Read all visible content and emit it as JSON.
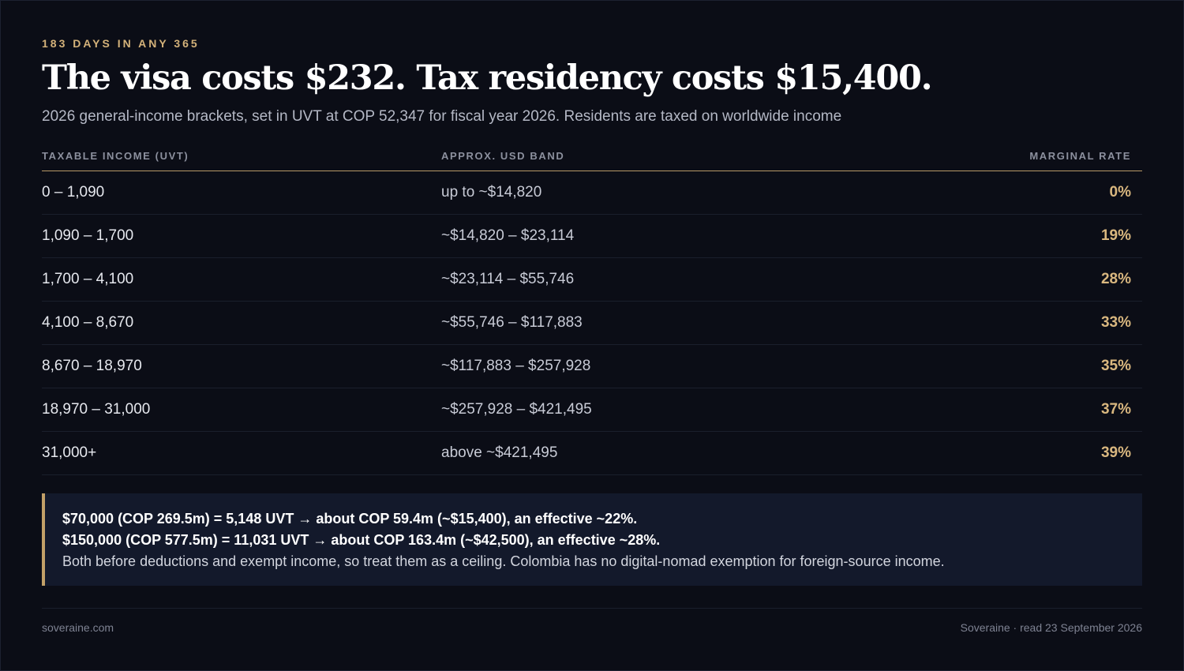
{
  "eyebrow": "183 DAYS IN ANY 365",
  "title": "The visa costs $232. Tax residency costs $15,400.",
  "subtitle": "2026 general-income brackets, set in UVT at COP 52,347 for fiscal year 2026. Residents are taxed on worldwide income",
  "table": {
    "headers": [
      "TAXABLE INCOME (UVT)",
      "APPROX. USD BAND",
      "MARGINAL RATE"
    ],
    "rows": [
      [
        "0 – 1,090",
        "up to ~$14,820",
        "0%"
      ],
      [
        "1,090 – 1,700",
        "~$14,820 – $23,114",
        "19%"
      ],
      [
        "1,700 – 4,100",
        "~$23,114 – $55,746",
        "28%"
      ],
      [
        "4,100 – 8,670",
        "~$55,746 – $117,883",
        "33%"
      ],
      [
        "8,670 – 18,970",
        "~$117,883 – $257,928",
        "35%"
      ],
      [
        "18,970 – 31,000",
        "~$257,928 – $421,495",
        "37%"
      ],
      [
        "31,000+",
        "above ~$421,495",
        "39%"
      ]
    ]
  },
  "callout": {
    "line1": "$70,000 (COP 269.5m) = 5,148 UVT → about COP 59.4m (~$15,400), an effective ~22%.",
    "line2": "$150,000 (COP 577.5m) = 11,031 UVT → about COP 163.4m (~$42,500), an effective ~28%.",
    "line3": "Both before deductions and exempt income, so treat them as a ceiling. Colombia has no digital-nomad exemption for foreign-source income."
  },
  "footer": {
    "left": "soveraine.com",
    "right": "Soveraine · read 23 September 2026"
  },
  "colors": {
    "background": "#0b0d16",
    "accent": "#d4b27a",
    "callout_bg": "#13192b"
  }
}
